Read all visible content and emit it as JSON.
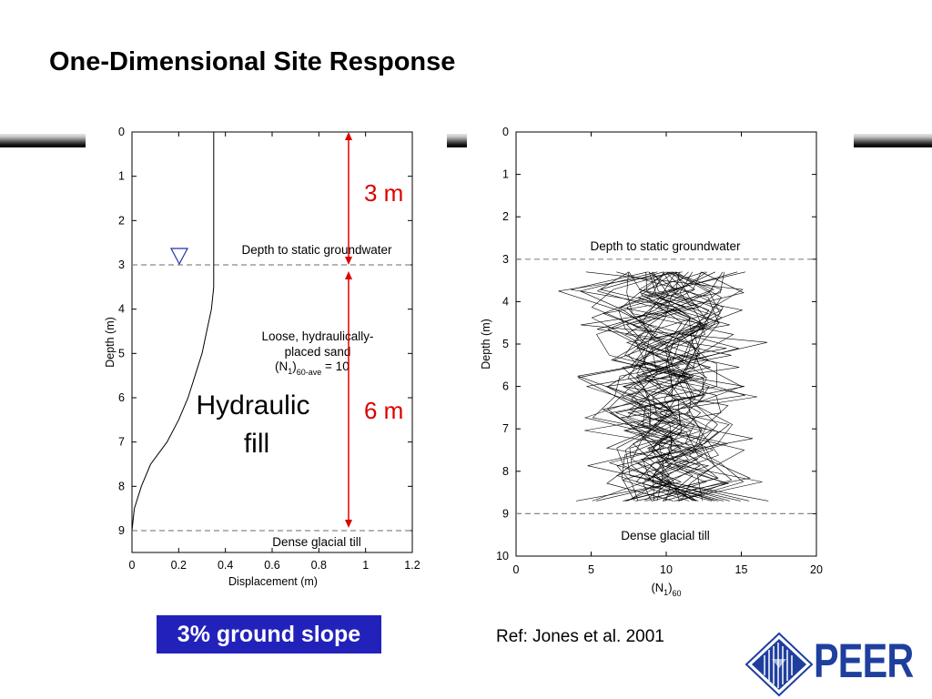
{
  "slide": {
    "title": "One-Dimensional Site Response",
    "slope_label": "3% ground slope",
    "reference": "Ref: Jones et al. 2001",
    "logo_text": "PEER"
  },
  "colors": {
    "slope_box": "#2222bb",
    "annotation_red": "#dd0000",
    "logo_blue": "#1f3f9f",
    "water_symbol": "#2233aa"
  },
  "chart_data": [
    {
      "type": "line",
      "xlabel": "Displacement (m)",
      "ylabel": "Depth (m)",
      "xlim": [
        0,
        1.2
      ],
      "ylim": [
        9,
        0
      ],
      "xticks": [
        "0",
        "0.2",
        "0.4",
        "0.6",
        "0.8",
        "1",
        "1.2"
      ],
      "yticks": [
        "0",
        "1",
        "2",
        "3",
        "4",
        "5",
        "6",
        "7",
        "8",
        "9"
      ],
      "series": [
        {
          "x": [
            0.35,
            0.35,
            0.35,
            0.35,
            0.35,
            0.35,
            0.35,
            0.35,
            0.34,
            0.32,
            0.3,
            0.27,
            0.24,
            0.2,
            0.15,
            0.08,
            0.04,
            0.01,
            0.0
          ],
          "y": [
            0,
            0.5,
            1,
            1.5,
            2,
            2.5,
            3,
            3.5,
            4,
            4.5,
            5,
            5.5,
            6,
            6.5,
            7,
            7.5,
            8,
            8.5,
            9
          ]
        }
      ],
      "hlines": [
        {
          "y": 3,
          "label": "Depth to static groundwater"
        },
        {
          "y": 9,
          "label": "Dense glacial till"
        }
      ],
      "annotations": {
        "layer_line1": "Loose, hydraulically-",
        "layer_line2": "placed sand",
        "n_main": "(N",
        "n_sub1": "1",
        "n_close": ")",
        "n_sub2": "60-ave",
        "n_value": " = 10",
        "fill_line1": "Hydraulic",
        "fill_line2": "fill",
        "dim_top": "3 m",
        "dim_bottom": "6 m"
      }
    },
    {
      "type": "line",
      "xlabel_main": "(N",
      "xlabel_sub1": "1",
      "xlabel_close": ")",
      "xlabel_sub2": "60",
      "ylabel": "Depth (m)",
      "xlim": [
        0,
        20
      ],
      "ylim": [
        10,
        0
      ],
      "xticks": [
        "0",
        "5",
        "10",
        "15",
        "20"
      ],
      "yticks": [
        "0",
        "1",
        "2",
        "3",
        "4",
        "5",
        "6",
        "7",
        "8",
        "9",
        "10"
      ],
      "mean": 10,
      "depth_range": [
        3.3,
        8.7
      ],
      "realizations": 40,
      "hlines": [
        {
          "y": 3,
          "label": "Depth to static groundwater"
        },
        {
          "y": 9,
          "label": "Dense glacial till"
        }
      ]
    }
  ]
}
